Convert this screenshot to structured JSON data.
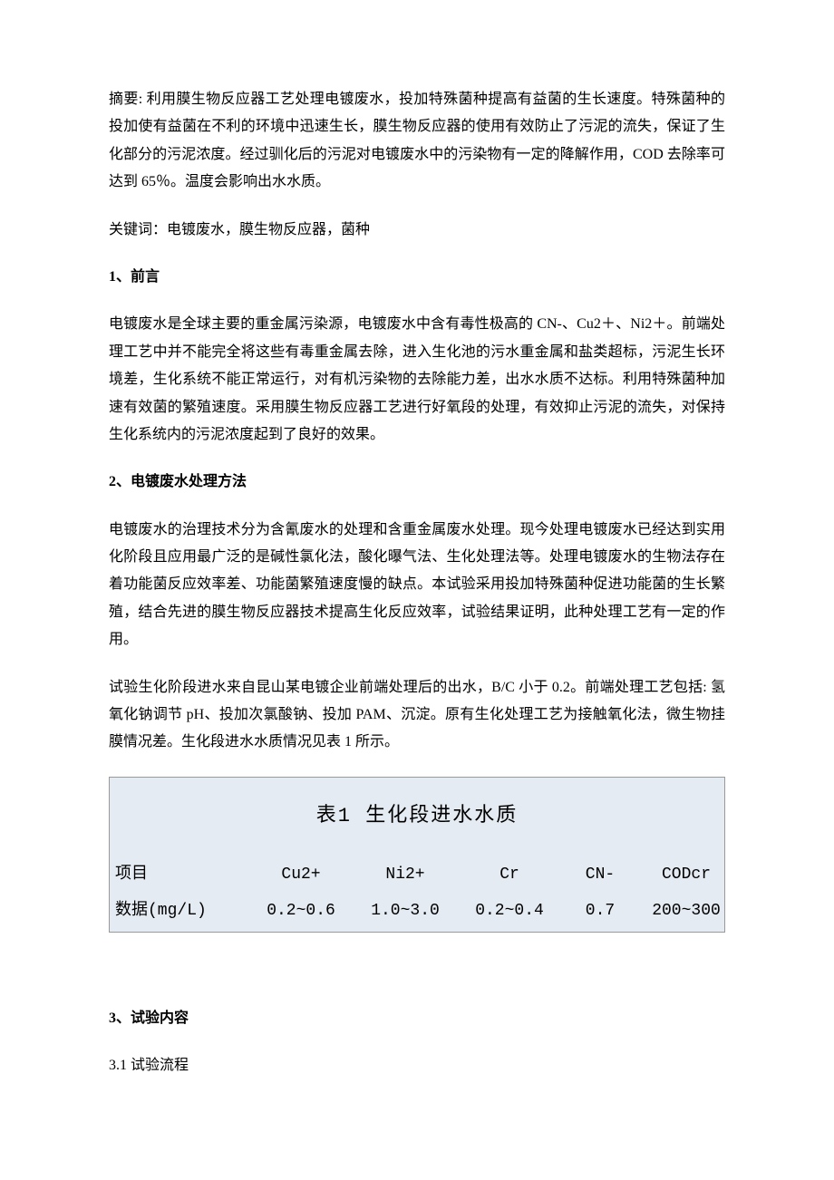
{
  "abstract": {
    "label": "摘要:",
    "text": "利用膜生物反应器工艺处理电镀废水，投加特殊菌种提高有益菌的生长速度。特殊菌种的投加使有益菌在不利的环境中迅速生长，膜生物反应器的使用有效防止了污泥的流失，保证了生化部分的污泥浓度。经过驯化后的污泥对电镀废水中的污染物有一定的降解作用，COD 去除率可达到 65％。温度会影响出水水质。"
  },
  "keywords": {
    "label": "关键词：",
    "text": "电镀废水，膜生物反应器，菌种"
  },
  "sections": {
    "s1": {
      "title": "1、前言",
      "body": "电镀废水是全球主要的重金属污染源，电镀废水中含有毒性极高的 CN-、Cu2＋、Ni2＋。前端处理工艺中并不能完全将这些有毒重金属去除，进入生化池的污水重金属和盐类超标，污泥生长环境差，生化系统不能正常运行，对有机污染物的去除能力差，出水水质不达标。利用特殊菌种加速有效菌的繁殖速度。采用膜生物反应器工艺进行好氧段的处理，有效抑止污泥的流失，对保持生化系统内的污泥浓度起到了良好的效果。"
    },
    "s2": {
      "title": "2、电镀废水处理方法",
      "p1": "电镀废水的治理技术分为含氰废水的处理和含重金属废水处理。现今处理电镀废水已经达到实用化阶段且应用最广泛的是碱性氯化法，酸化曝气法、生化处理法等。处理电镀废水的生物法存在着功能菌反应效率差、功能菌繁殖速度慢的缺点。本试验采用投加特殊菌种促进功能菌的生长繁殖，结合先进的膜生物反应器技术提高生化反应效率，试验结果证明，此种处理工艺有一定的作用。",
      "p2": "试验生化阶段进水来自昆山某电镀企业前端处理后的出水，B/C 小于 0.2。前端处理工艺包括: 氢氧化钠调节 pH、投加次氯酸钠、投加 PAM、沉淀。原有生化处理工艺为接触氧化法，微生物挂膜情况差。生化段进水水质情况见表 1 所示。"
    },
    "s3": {
      "title": "3、试验内容",
      "sub1": "3.1 试验流程"
    }
  },
  "table1": {
    "title": "表1 生化段进水水质",
    "background_color": "#e5ebf2",
    "border_color": "#999999",
    "title_fontsize": 22,
    "cell_fontsize": 18,
    "font_family": "Courier New",
    "columns": [
      "项目",
      "Cu2+",
      "Ni2+",
      "Cr",
      "CN-",
      "CODcr"
    ],
    "row_label": "数据(mg/L)",
    "row_values": [
      "0.2~0.6",
      "1.0~3.0",
      "0.2~0.4",
      "0.7",
      "200~300"
    ]
  }
}
